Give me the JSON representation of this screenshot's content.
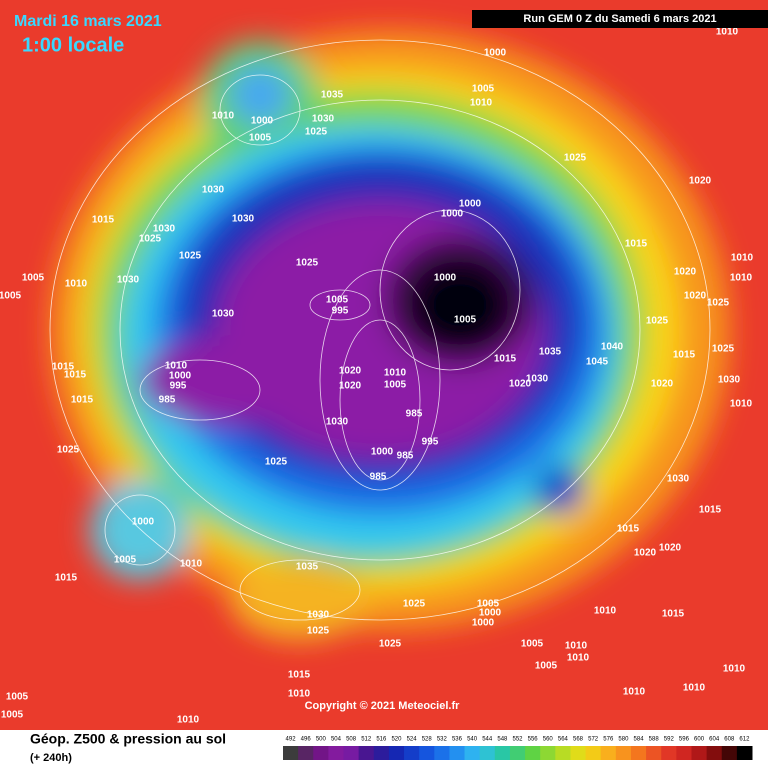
{
  "header": {
    "date": "Mardi 16 mars 2021",
    "time": "1:00 locale",
    "run": "Run GEM 0 Z du Samedi 6 mars 2021"
  },
  "copyright": "Copyright © 2021 Meteociel.fr",
  "legend": {
    "title": "Géop. Z500 & pression au sol",
    "lead": "(+ 240h)",
    "ticks": [
      492,
      496,
      500,
      504,
      508,
      512,
      516,
      520,
      524,
      528,
      532,
      536,
      540,
      544,
      548,
      552,
      556,
      560,
      564,
      568,
      572,
      576,
      580,
      584,
      588,
      592,
      596,
      600,
      604,
      608,
      612
    ]
  },
  "isobar_labels": [
    "1000",
    "1005",
    "1010",
    "1010",
    "1035",
    "1010",
    "1000",
    "1030",
    "1025",
    "1005",
    "1025",
    "1020",
    "1030",
    "1000",
    "1000",
    "1015",
    "1030",
    "1030",
    "1025",
    "1015",
    "1025",
    "1025",
    "1020",
    "1010",
    "1005",
    "1000",
    "1010",
    "1030",
    "1005",
    "1010",
    "1020",
    "1025",
    "1005",
    "995",
    "1005",
    "1030",
    "1025",
    "1040",
    "1035",
    "1045",
    "1015",
    "1025",
    "1015",
    "1010",
    "1000",
    "995",
    "1015",
    "1015",
    "1020",
    "1010",
    "1005",
    "1020",
    "1020",
    "1030",
    "1020",
    "1030",
    "985",
    "1015",
    "1010",
    "985",
    "1030",
    "995",
    "1000",
    "985",
    "1025",
    "1025",
    "985",
    "1030",
    "1015",
    "1000",
    "1015",
    "1005",
    "1010",
    "1020",
    "1020",
    "1035",
    "1015",
    "1025",
    "1005",
    "1000",
    "1010",
    "1015",
    "1030",
    "1025",
    "1000",
    "1025",
    "1005",
    "1010",
    "1010",
    "1005",
    "1015",
    "1010",
    "1010",
    "1005",
    "1010",
    "1010",
    "1005",
    "1010"
  ]
}
